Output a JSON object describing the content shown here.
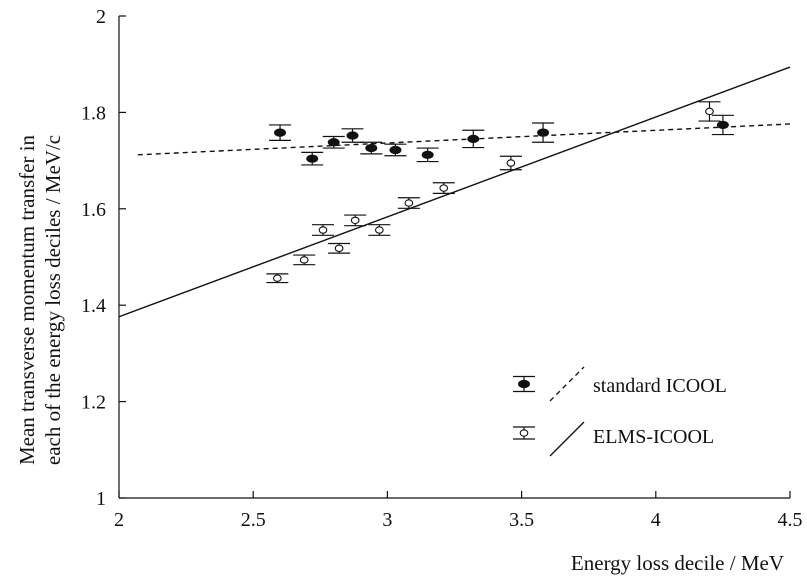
{
  "chart_data": {
    "type": "scatter",
    "xlabel": "Energy loss decile / MeV",
    "ylabel_lines": [
      "Mean transverse momentum transfer in",
      "each of the energy loss deciles / MeV/c"
    ],
    "xlim": [
      2,
      4.5
    ],
    "ylim": [
      1,
      2
    ],
    "xticks": [
      "2",
      "2.5",
      "3",
      "3.5",
      "4",
      "4.5"
    ],
    "yticks": [
      "1",
      "1.2",
      "1.4",
      "1.6",
      "1.8",
      "2"
    ],
    "grid": false,
    "legend_position": "bottom-right",
    "series": [
      {
        "name": "standard ICOOL",
        "marker": "filled",
        "fit_line": "dashed",
        "fit": {
          "x": [
            2.07,
            4.5
          ],
          "y": [
            1.712,
            1.776
          ]
        },
        "points": [
          {
            "x": 2.6,
            "y": 1.758,
            "err": 0.016
          },
          {
            "x": 2.72,
            "y": 1.704,
            "err": 0.013
          },
          {
            "x": 2.8,
            "y": 1.738,
            "err": 0.012
          },
          {
            "x": 2.87,
            "y": 1.752,
            "err": 0.014
          },
          {
            "x": 2.94,
            "y": 1.726,
            "err": 0.012
          },
          {
            "x": 3.03,
            "y": 1.722,
            "err": 0.012
          },
          {
            "x": 3.15,
            "y": 1.712,
            "err": 0.014
          },
          {
            "x": 3.32,
            "y": 1.745,
            "err": 0.018
          },
          {
            "x": 3.58,
            "y": 1.758,
            "err": 0.02
          },
          {
            "x": 4.25,
            "y": 1.774,
            "err": 0.02
          }
        ]
      },
      {
        "name": "ELMS-ICOOL",
        "marker": "open",
        "fit_line": "solid",
        "fit": {
          "x": [
            2.0,
            4.5
          ],
          "y": [
            1.376,
            1.894
          ]
        },
        "points": [
          {
            "x": 2.59,
            "y": 1.456,
            "err": 0.009
          },
          {
            "x": 2.69,
            "y": 1.494,
            "err": 0.01
          },
          {
            "x": 2.76,
            "y": 1.556,
            "err": 0.011
          },
          {
            "x": 2.82,
            "y": 1.518,
            "err": 0.01
          },
          {
            "x": 2.88,
            "y": 1.576,
            "err": 0.011
          },
          {
            "x": 2.97,
            "y": 1.556,
            "err": 0.011
          },
          {
            "x": 3.08,
            "y": 1.612,
            "err": 0.011
          },
          {
            "x": 3.21,
            "y": 1.643,
            "err": 0.011
          },
          {
            "x": 3.46,
            "y": 1.695,
            "err": 0.014
          },
          {
            "x": 4.2,
            "y": 1.802,
            "err": 0.02
          }
        ]
      }
    ]
  }
}
